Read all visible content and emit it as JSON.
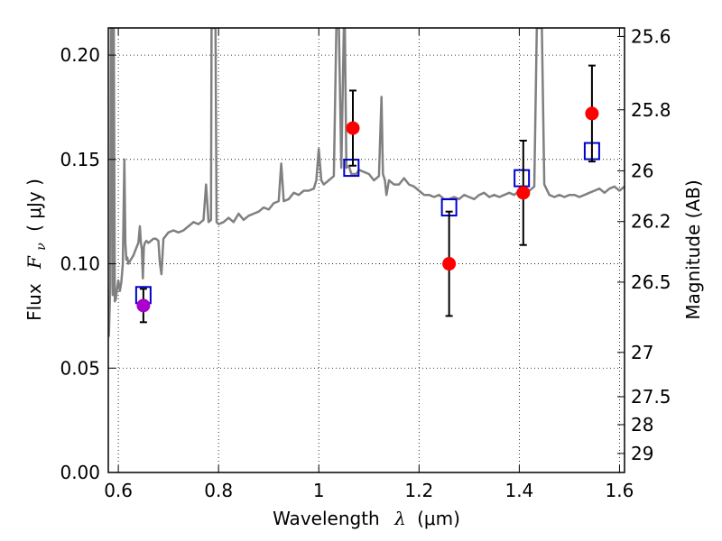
{
  "chart_data": {
    "type": "scatter",
    "xlabel": "Wavelength",
    "xlabel_symbol": "λ",
    "xlabel_unit": "(μm)",
    "ylabel": "Flux",
    "ylabel_symbol": "F",
    "ylabel_subscript": "ν",
    "ylabel_unit": "( μJy )",
    "y2label": "Magnitude (AB)",
    "xlim": [
      0.58,
      1.61
    ],
    "ylim": [
      0.0,
      0.213
    ],
    "x_ticks": [
      0.6,
      0.8,
      1.0,
      1.2,
      1.4,
      1.6
    ],
    "x_tick_labels": [
      "0.6",
      "0.8",
      "1",
      "1.2",
      "1.4",
      "1.6"
    ],
    "y_ticks": [
      0.0,
      0.05,
      0.1,
      0.15,
      0.2
    ],
    "y_tick_labels": [
      "0.00",
      "0.05",
      "0.10",
      "0.15",
      "0.20"
    ],
    "mag_ticks": [
      25.6,
      25.8,
      26,
      26.2,
      26.5,
      27,
      27.5,
      28,
      29
    ],
    "mag_tick_labels": [
      "25.6",
      "25.8",
      "26",
      "26.2",
      "26.5",
      "27",
      "27.5",
      "28",
      "29"
    ],
    "grid": true,
    "colors": {
      "spectrum": "#808080",
      "observed": "#ff0000",
      "observed_alt": "#aa00cc",
      "model_box": "#0000cc",
      "errorbar": "#000000"
    },
    "series": [
      {
        "kind": "spectrum",
        "x": [
          0.581,
          0.584,
          0.585,
          0.587,
          0.588,
          0.589,
          0.59,
          0.591,
          0.593,
          0.595,
          0.597,
          0.6,
          0.603,
          0.606,
          0.609,
          0.612,
          0.614,
          0.616,
          0.618,
          0.62,
          0.625,
          0.63,
          0.635,
          0.64,
          0.643,
          0.645,
          0.647,
          0.649,
          0.651,
          0.653,
          0.656,
          0.66,
          0.665,
          0.67,
          0.675,
          0.68,
          0.683,
          0.686,
          0.69,
          0.7,
          0.71,
          0.72,
          0.73,
          0.74,
          0.75,
          0.76,
          0.77,
          0.775,
          0.78,
          0.785,
          0.786,
          0.788,
          0.79,
          0.792,
          0.794,
          0.796,
          0.8,
          0.81,
          0.82,
          0.83,
          0.84,
          0.85,
          0.86,
          0.87,
          0.88,
          0.89,
          0.9,
          0.91,
          0.92,
          0.925,
          0.93,
          0.94,
          0.95,
          0.96,
          0.97,
          0.98,
          0.99,
          0.995,
          1.0,
          1.005,
          1.01,
          1.02,
          1.03,
          1.035,
          1.04,
          1.045,
          1.05,
          1.052,
          1.055,
          1.06,
          1.065,
          1.075,
          1.08,
          1.09,
          1.1,
          1.11,
          1.12,
          1.125,
          1.128,
          1.132,
          1.135,
          1.14,
          1.15,
          1.16,
          1.17,
          1.18,
          1.19,
          1.2,
          1.21,
          1.22,
          1.23,
          1.24,
          1.25,
          1.26,
          1.27,
          1.28,
          1.29,
          1.3,
          1.31,
          1.32,
          1.33,
          1.34,
          1.35,
          1.36,
          1.37,
          1.38,
          1.39,
          1.4,
          1.41,
          1.42,
          1.43,
          1.435,
          1.44,
          1.445,
          1.45,
          1.46,
          1.47,
          1.48,
          1.49,
          1.5,
          1.51,
          1.52,
          1.53,
          1.54,
          1.55,
          1.56,
          1.57,
          1.58,
          1.59,
          1.6,
          1.61
        ],
        "y": [
          0.065,
          0.09,
          0.213,
          0.213,
          0.213,
          0.085,
          0.213,
          0.213,
          0.082,
          0.083,
          0.087,
          0.092,
          0.087,
          0.091,
          0.1,
          0.15,
          0.11,
          0.102,
          0.103,
          0.1,
          0.102,
          0.104,
          0.107,
          0.11,
          0.118,
          0.11,
          0.107,
          0.093,
          0.108,
          0.11,
          0.111,
          0.11,
          0.111,
          0.112,
          0.112,
          0.111,
          0.1,
          0.095,
          0.112,
          0.115,
          0.116,
          0.115,
          0.116,
          0.118,
          0.12,
          0.119,
          0.121,
          0.138,
          0.12,
          0.121,
          0.213,
          0.213,
          0.213,
          0.213,
          0.213,
          0.12,
          0.119,
          0.12,
          0.122,
          0.12,
          0.124,
          0.121,
          0.123,
          0.124,
          0.125,
          0.127,
          0.126,
          0.129,
          0.13,
          0.148,
          0.13,
          0.131,
          0.134,
          0.133,
          0.135,
          0.135,
          0.136,
          0.14,
          0.155,
          0.14,
          0.138,
          0.14,
          0.142,
          0.213,
          0.213,
          0.146,
          0.213,
          0.213,
          0.146,
          0.147,
          0.143,
          0.143,
          0.145,
          0.144,
          0.143,
          0.14,
          0.142,
          0.18,
          0.143,
          0.14,
          0.133,
          0.14,
          0.138,
          0.138,
          0.141,
          0.138,
          0.137,
          0.135,
          0.133,
          0.133,
          0.132,
          0.133,
          0.131,
          0.131,
          0.132,
          0.131,
          0.133,
          0.132,
          0.131,
          0.133,
          0.134,
          0.132,
          0.133,
          0.132,
          0.133,
          0.134,
          0.133,
          0.135,
          0.134,
          0.135,
          0.137,
          0.213,
          0.213,
          0.213,
          0.138,
          0.133,
          0.132,
          0.133,
          0.132,
          0.133,
          0.133,
          0.132,
          0.133,
          0.134,
          0.135,
          0.136,
          0.134,
          0.136,
          0.137,
          0.135,
          0.137
        ]
      },
      {
        "kind": "observed",
        "x": [
          0.65,
          1.068,
          1.26,
          1.408,
          1.545
        ],
        "y": [
          0.08,
          0.165,
          0.1,
          0.134,
          0.172
        ],
        "yerr": [
          0.008,
          0.018,
          0.025,
          0.025,
          0.023
        ],
        "marker_colors": [
          "#aa00cc",
          "#ff0000",
          "#ff0000",
          "#ff0000",
          "#ff0000"
        ]
      },
      {
        "kind": "model_box",
        "x": [
          0.65,
          1.065,
          1.26,
          1.405,
          1.545
        ],
        "y": [
          0.085,
          0.146,
          0.127,
          0.141,
          0.154
        ]
      }
    ]
  }
}
